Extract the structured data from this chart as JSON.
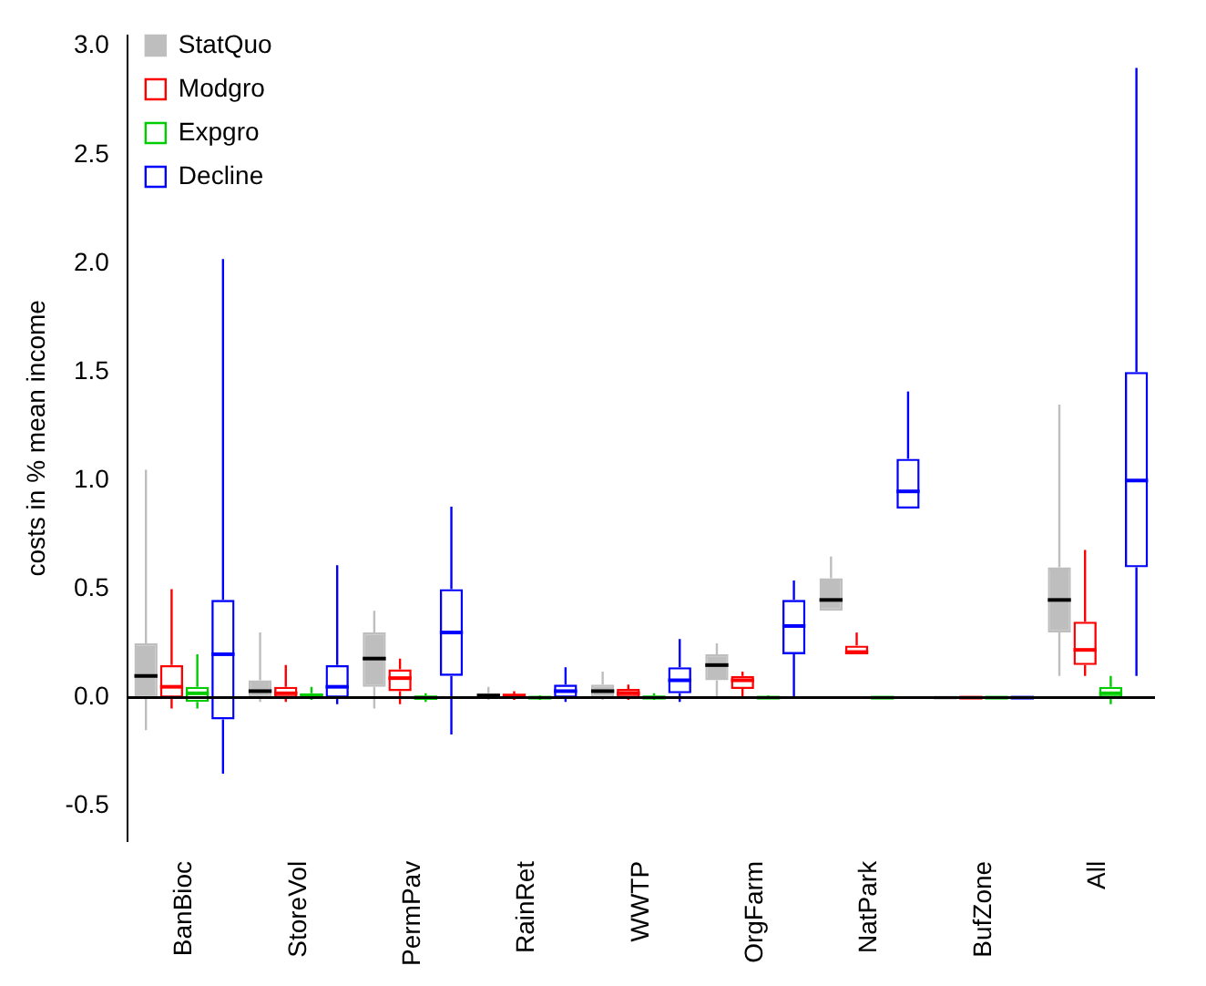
{
  "chart_data": {
    "type": "box",
    "ylabel": "costs in % mean income",
    "categories": [
      "BanBioc",
      "StoreVol",
      "PermPav",
      "RainRet",
      "WWTP",
      "OrgFarm",
      "NatPark",
      "BufZone",
      "All"
    ],
    "series": [
      {
        "name": "StatQuo",
        "color": "#bebebe",
        "boxes": [
          {
            "low": -0.15,
            "q1": 0,
            "median": 0.1,
            "q3": 0.25,
            "high": 1.05
          },
          {
            "low": -0.02,
            "q1": 0,
            "median": 0.03,
            "q3": 0.08,
            "high": 0.3
          },
          {
            "low": -0.05,
            "q1": 0.05,
            "median": 0.18,
            "q3": 0.3,
            "high": 0.4
          },
          {
            "low": -0.01,
            "q1": 0,
            "median": 0.01,
            "q3": 0.02,
            "high": 0.05
          },
          {
            "low": -0.01,
            "q1": 0,
            "median": 0.03,
            "q3": 0.06,
            "high": 0.12
          },
          {
            "low": 0,
            "q1": 0.08,
            "median": 0.15,
            "q3": 0.2,
            "high": 0.25
          },
          {
            "low": 0.4,
            "q1": 0.4,
            "median": 0.45,
            "q3": 0.55,
            "high": 0.65
          },
          {
            "low": 0,
            "q1": 0,
            "median": 0,
            "q3": 0,
            "high": 0
          },
          {
            "low": 0.1,
            "q1": 0.3,
            "median": 0.45,
            "q3": 0.6,
            "high": 1.35
          }
        ]
      },
      {
        "name": "Modgro",
        "color": "#ff0000",
        "boxes": [
          {
            "low": -0.05,
            "q1": 0,
            "median": 0.05,
            "q3": 0.15,
            "high": 0.5
          },
          {
            "low": -0.02,
            "q1": 0,
            "median": 0.02,
            "q3": 0.05,
            "high": 0.15
          },
          {
            "low": -0.03,
            "q1": 0.03,
            "median": 0.09,
            "q3": 0.13,
            "high": 0.18
          },
          {
            "low": -0.01,
            "q1": 0,
            "median": 0.01,
            "q3": 0.01,
            "high": 0.03
          },
          {
            "low": -0.01,
            "q1": 0,
            "median": 0.02,
            "q3": 0.04,
            "high": 0.06
          },
          {
            "low": 0,
            "q1": 0.04,
            "median": 0.08,
            "q3": 0.1,
            "high": 0.12
          },
          {
            "low": 0.2,
            "q1": 0.2,
            "median": 0.21,
            "q3": 0.24,
            "high": 0.3
          },
          {
            "low": 0,
            "q1": 0,
            "median": 0,
            "q3": 0,
            "high": 0
          },
          {
            "low": 0.1,
            "q1": 0.15,
            "median": 0.22,
            "q3": 0.35,
            "high": 0.68
          }
        ]
      },
      {
        "name": "Expgro",
        "color": "#00cd00",
        "boxes": [
          {
            "low": -0.05,
            "q1": -0.02,
            "median": 0.02,
            "q3": 0.05,
            "high": 0.2
          },
          {
            "low": -0.01,
            "q1": 0,
            "median": 0.01,
            "q3": 0.02,
            "high": 0.05
          },
          {
            "low": -0.02,
            "q1": -0.01,
            "median": 0,
            "q3": 0.01,
            "high": 0.02
          },
          {
            "low": -0.01,
            "q1": 0,
            "median": 0,
            "q3": 0,
            "high": 0.01
          },
          {
            "low": -0.01,
            "q1": 0,
            "median": 0,
            "q3": 0.01,
            "high": 0.02
          },
          {
            "low": 0,
            "q1": 0,
            "median": 0,
            "q3": 0,
            "high": 0.01
          },
          {
            "low": 0,
            "q1": 0,
            "median": 0,
            "q3": 0,
            "high": 0
          },
          {
            "low": 0,
            "q1": 0,
            "median": 0,
            "q3": 0,
            "high": 0
          },
          {
            "low": -0.03,
            "q1": 0,
            "median": 0.02,
            "q3": 0.05,
            "high": 0.1
          }
        ]
      },
      {
        "name": "Decline",
        "color": "#0000ff",
        "boxes": [
          {
            "low": -0.35,
            "q1": -0.1,
            "median": 0.2,
            "q3": 0.45,
            "high": 2.02
          },
          {
            "low": -0.03,
            "q1": 0,
            "median": 0.05,
            "q3": 0.15,
            "high": 0.61
          },
          {
            "low": -0.17,
            "q1": 0.1,
            "median": 0.3,
            "q3": 0.5,
            "high": 0.88
          },
          {
            "low": -0.02,
            "q1": 0,
            "median": 0.03,
            "q3": 0.06,
            "high": 0.14
          },
          {
            "low": -0.02,
            "q1": 0.02,
            "median": 0.08,
            "q3": 0.14,
            "high": 0.27
          },
          {
            "low": 0,
            "q1": 0.2,
            "median": 0.33,
            "q3": 0.45,
            "high": 0.54
          },
          {
            "low": 0.87,
            "q1": 0.87,
            "median": 0.95,
            "q3": 1.1,
            "high": 1.41
          },
          {
            "low": 0,
            "q1": 0,
            "median": 0,
            "q3": 0,
            "high": 0
          },
          {
            "low": 0.1,
            "q1": 0.6,
            "median": 1,
            "q3": 1.5,
            "high": 2.9
          }
        ]
      }
    ],
    "ylim": [
      -0.66,
      3.05
    ],
    "yticks": [
      -0.5,
      {
        "value": 0,
        "label": "0.0"
      },
      0.5,
      {
        "value": 1,
        "label": "1.0"
      },
      1.5,
      {
        "value": 2,
        "label": "2.0"
      },
      2.5,
      {
        "value": 3,
        "label": "3.0"
      }
    ],
    "ref_lines": [
      {
        "axis": "y",
        "value": 0,
        "color": "#000000"
      }
    ],
    "legend": "top left",
    "grid": false
  }
}
